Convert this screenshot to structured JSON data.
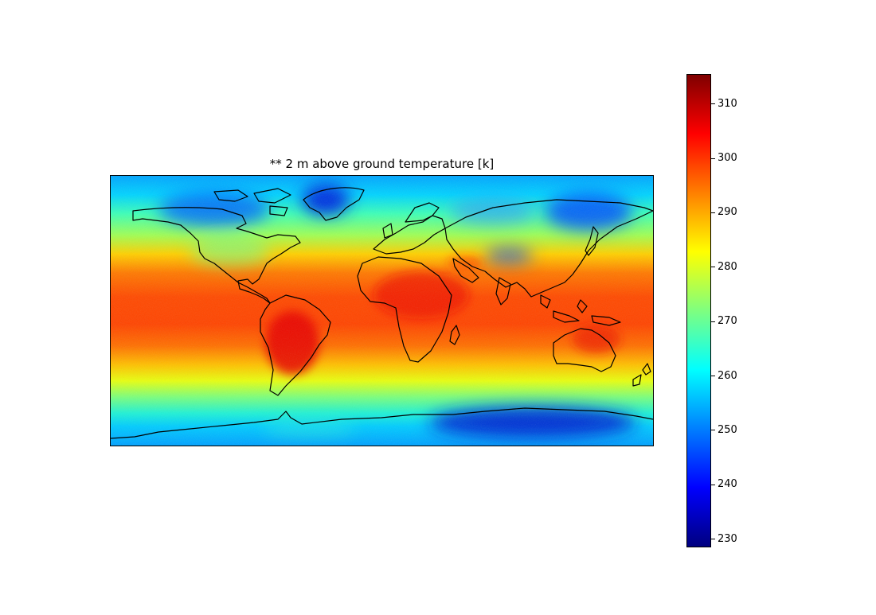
{
  "map": {
    "title": "** 2 m above ground temperature [k]",
    "projection": "plate-carree",
    "extent_lon": [
      -180,
      180
    ],
    "extent_lat": [
      -90,
      90
    ],
    "coastlines": true,
    "colormap": "jet"
  },
  "colorbar": {
    "min": 228.5,
    "max": 315.5,
    "ticks": [
      230,
      240,
      250,
      260,
      270,
      280,
      290,
      300,
      310
    ],
    "tick_labels": [
      "230",
      "240",
      "250",
      "260",
      "270",
      "280",
      "290",
      "300",
      "310"
    ],
    "orientation": "vertical",
    "colors": [
      "#00007f",
      "#0000ff",
      "#007fff",
      "#00ffff",
      "#7fff7f",
      "#ffff00",
      "#ff7f00",
      "#ff0000",
      "#7f0000"
    ]
  },
  "colors": {
    "coastline": "#000000",
    "frame": "#000000",
    "background": "#ffffff"
  }
}
